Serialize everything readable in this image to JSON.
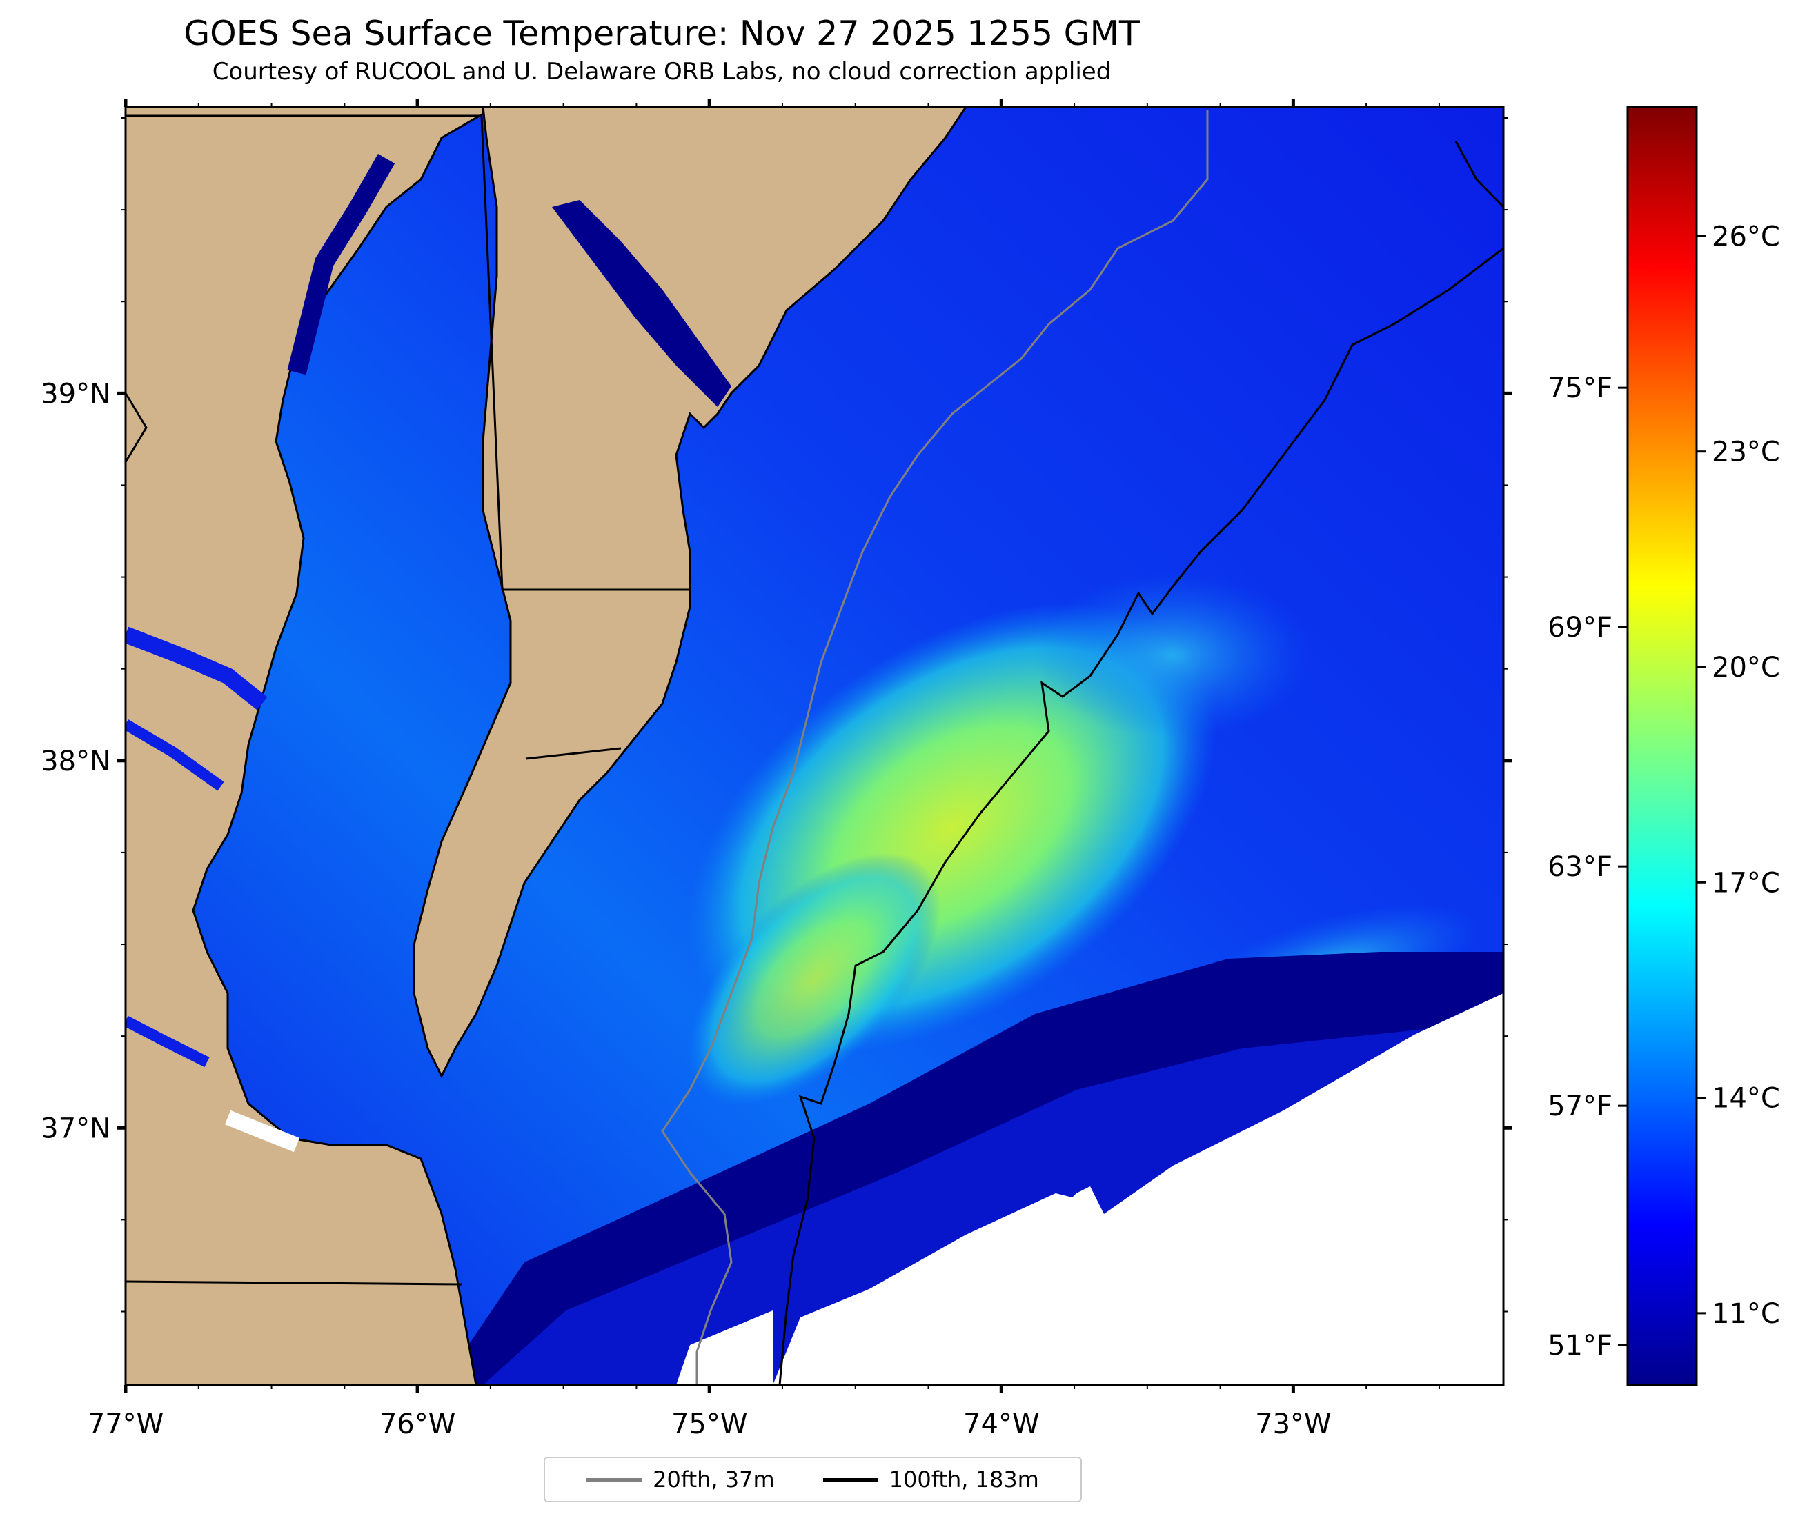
{
  "title": "GOES Sea Surface Temperature: Nov 27 2025 1255 GMT",
  "subtitle": "Courtesy of RUCOOL and U. Delaware ORB Labs, no cloud correction applied",
  "map": {
    "lon_range": [
      -77.0,
      -72.28
    ],
    "lat_range": [
      36.3,
      39.78
    ],
    "lon_ticks": [
      {
        "value": -77,
        "label": "77°W"
      },
      {
        "value": -76,
        "label": "76°W"
      },
      {
        "value": -75,
        "label": "75°W"
      },
      {
        "value": -74,
        "label": "74°W"
      },
      {
        "value": -73,
        "label": "73°W"
      }
    ],
    "lat_ticks": [
      {
        "value": 39,
        "label": "39°N"
      },
      {
        "value": 38,
        "label": "38°N"
      },
      {
        "value": 37,
        "label": "37°N"
      }
    ],
    "land_color": "#d2b48c",
    "no_data_color": "#ffffff",
    "isobath_colors": {
      "20fth": "#808080",
      "100fth": "#000000"
    }
  },
  "colorbar": {
    "colormap": "jet",
    "min_c": 10.0,
    "max_c": 27.8,
    "celsius_ticks": [
      {
        "value": 11,
        "label": "11°C"
      },
      {
        "value": 14,
        "label": "14°C"
      },
      {
        "value": 17,
        "label": "17°C"
      },
      {
        "value": 20,
        "label": "20°C"
      },
      {
        "value": 23,
        "label": "23°C"
      },
      {
        "value": 26,
        "label": "26°C"
      }
    ],
    "fahrenheit_ticks": [
      {
        "value": 51,
        "label": "51°F"
      },
      {
        "value": 57,
        "label": "57°F"
      },
      {
        "value": 63,
        "label": "63°F"
      },
      {
        "value": 69,
        "label": "69°F"
      },
      {
        "value": 75,
        "label": "75°F"
      }
    ]
  },
  "legend": [
    {
      "label": "20fth, 37m",
      "color": "#808080"
    },
    {
      "label": "100fth, 183m",
      "color": "#000000"
    }
  ]
}
